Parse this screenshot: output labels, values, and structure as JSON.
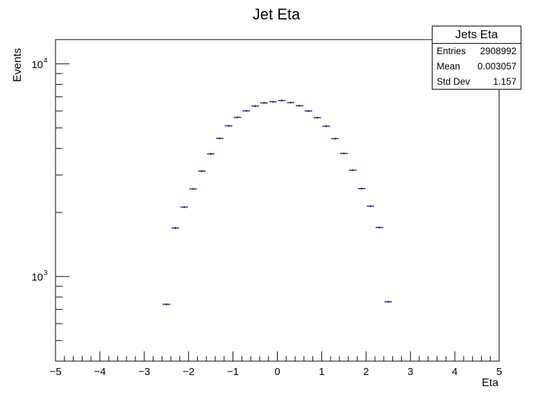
{
  "chart_data": {
    "type": "scatter",
    "title": "Jet Eta",
    "xlabel": "Eta",
    "ylabel": "Events",
    "xlim": [
      -5,
      5
    ],
    "ylim": [
      400,
      13000
    ],
    "yscale": "log",
    "xticks": [
      "−5",
      "−4",
      "−3",
      "−2",
      "−1",
      "0",
      "1",
      "2",
      "3",
      "4",
      "5"
    ],
    "yticks": [
      {
        "base": "10",
        "exp": "3",
        "value": 1000
      },
      {
        "base": "10",
        "exp": "4",
        "value": 10000
      }
    ],
    "bin_width": 0.2,
    "grid": false,
    "series": [
      {
        "color": "#00008b",
        "x": [
          -2.5,
          -2.3,
          -2.1,
          -1.9,
          -1.7,
          -1.5,
          -1.3,
          -1.1,
          -0.9,
          -0.7,
          -0.5,
          -0.3,
          -0.1,
          0.1,
          0.3,
          0.5,
          0.7,
          0.9,
          1.1,
          1.3,
          1.5,
          1.7,
          1.9,
          2.1,
          2.3,
          2.5
        ],
        "y": [
          740,
          1690,
          2120,
          2580,
          3130,
          3770,
          4460,
          5110,
          5600,
          6010,
          6330,
          6550,
          6630,
          6720,
          6570,
          6350,
          6000,
          5580,
          5090,
          4450,
          3790,
          3160,
          2590,
          2140,
          1700,
          760
        ]
      }
    ]
  },
  "stats": {
    "title": "Jets Eta",
    "rows": [
      {
        "label": "Entries",
        "value": "2908992"
      },
      {
        "label": "Mean",
        "value": "0.003057"
      },
      {
        "label": "Std Dev",
        "value": "1.157"
      }
    ]
  }
}
